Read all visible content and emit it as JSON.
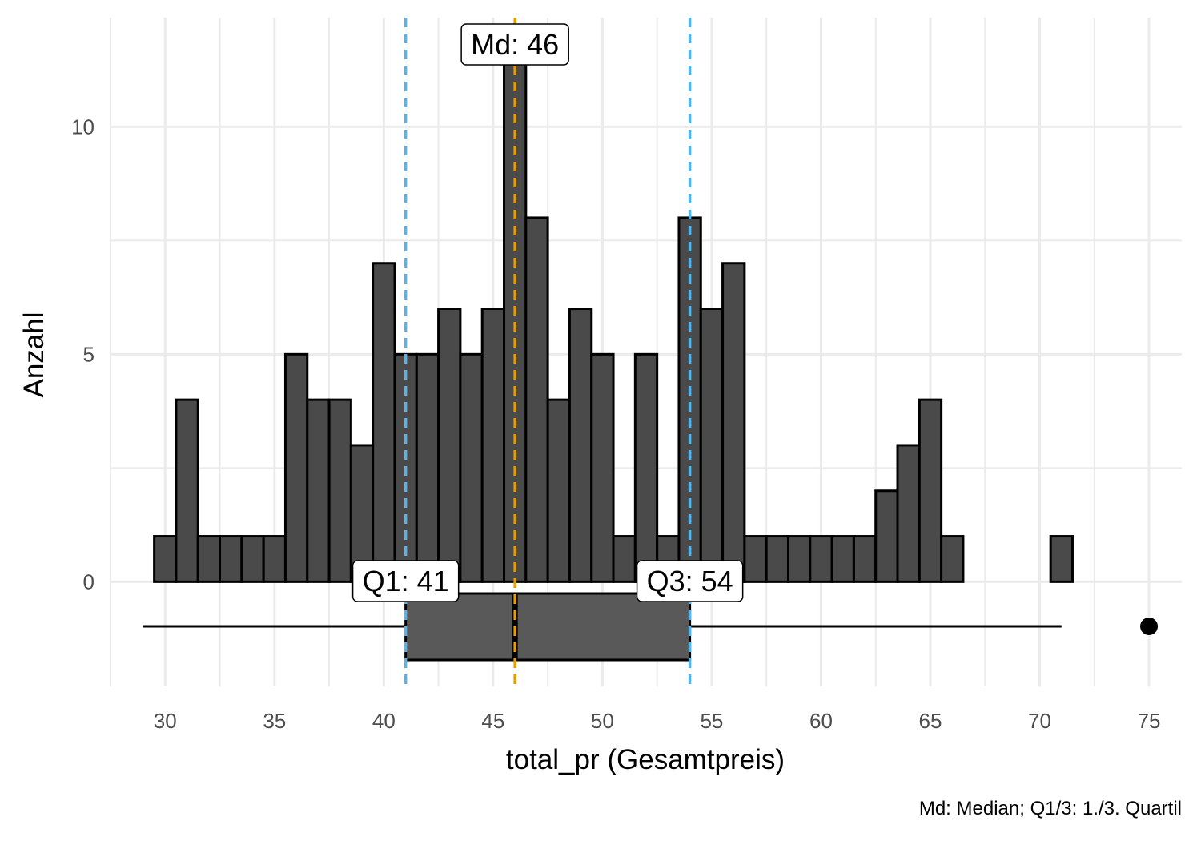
{
  "chart_data": {
    "type": "bar",
    "subtype": "histogram-with-boxplot",
    "xlabel": "total_pr (Gesamtpreis)",
    "ylabel": "Anzahl",
    "caption": "Md: Median; Q1/3: 1./3. Quartil",
    "xlim": [
      27.5,
      76.5
    ],
    "ylim": [
      -2.3,
      12.4
    ],
    "x_ticks": [
      "30",
      "35",
      "40",
      "45",
      "50",
      "55",
      "60",
      "65",
      "70",
      "75"
    ],
    "y_ticks": [
      "0",
      "5",
      "10"
    ],
    "bin_width": 1,
    "bins": [
      {
        "x": 30,
        "count": 1
      },
      {
        "x": 31,
        "count": 4
      },
      {
        "x": 32,
        "count": 1
      },
      {
        "x": 33,
        "count": 1
      },
      {
        "x": 34,
        "count": 1
      },
      {
        "x": 35,
        "count": 1
      },
      {
        "x": 36,
        "count": 5
      },
      {
        "x": 37,
        "count": 4
      },
      {
        "x": 38,
        "count": 4
      },
      {
        "x": 39,
        "count": 3
      },
      {
        "x": 40,
        "count": 7
      },
      {
        "x": 41,
        "count": 5
      },
      {
        "x": 42,
        "count": 5
      },
      {
        "x": 43,
        "count": 6
      },
      {
        "x": 44,
        "count": 5
      },
      {
        "x": 45,
        "count": 6
      },
      {
        "x": 46,
        "count": 12
      },
      {
        "x": 47,
        "count": 8
      },
      {
        "x": 48,
        "count": 4
      },
      {
        "x": 49,
        "count": 6
      },
      {
        "x": 50,
        "count": 5
      },
      {
        "x": 51,
        "count": 1
      },
      {
        "x": 52,
        "count": 5
      },
      {
        "x": 53,
        "count": 1
      },
      {
        "x": 54,
        "count": 8
      },
      {
        "x": 55,
        "count": 6
      },
      {
        "x": 56,
        "count": 7
      },
      {
        "x": 57,
        "count": 1
      },
      {
        "x": 58,
        "count": 1
      },
      {
        "x": 59,
        "count": 1
      },
      {
        "x": 60,
        "count": 1
      },
      {
        "x": 61,
        "count": 1
      },
      {
        "x": 62,
        "count": 1
      },
      {
        "x": 63,
        "count": 2
      },
      {
        "x": 64,
        "count": 3
      },
      {
        "x": 65,
        "count": 4
      },
      {
        "x": 66,
        "count": 1
      },
      {
        "x": 67,
        "count": 0
      },
      {
        "x": 68,
        "count": 0
      },
      {
        "x": 69,
        "count": 0
      },
      {
        "x": 70,
        "count": 0
      },
      {
        "x": 71,
        "count": 1
      },
      {
        "x": 72,
        "count": 0
      },
      {
        "x": 73,
        "count": 0
      },
      {
        "x": 74,
        "count": 0
      }
    ],
    "boxplot": {
      "whisker_low": 29,
      "q1": 41,
      "median": 46,
      "q3": 54,
      "whisker_high": 71,
      "outliers": [
        75
      ]
    },
    "reference_lines": [
      {
        "label": "Q1: 41",
        "x": 41,
        "color": "#56B4E9"
      },
      {
        "label": "Md: 46",
        "x": 46,
        "color": "#E69F00"
      },
      {
        "label": "Q3: 54",
        "x": 54,
        "color": "#56B4E9"
      }
    ],
    "colors": {
      "bar_fill": "#4a4a4a",
      "box_fill": "#595959",
      "outline": "#000000",
      "grid": "#ebebeb",
      "quartile_line": "#56B4E9",
      "median_line": "#E69F00"
    },
    "grid": true,
    "legend": "none"
  }
}
